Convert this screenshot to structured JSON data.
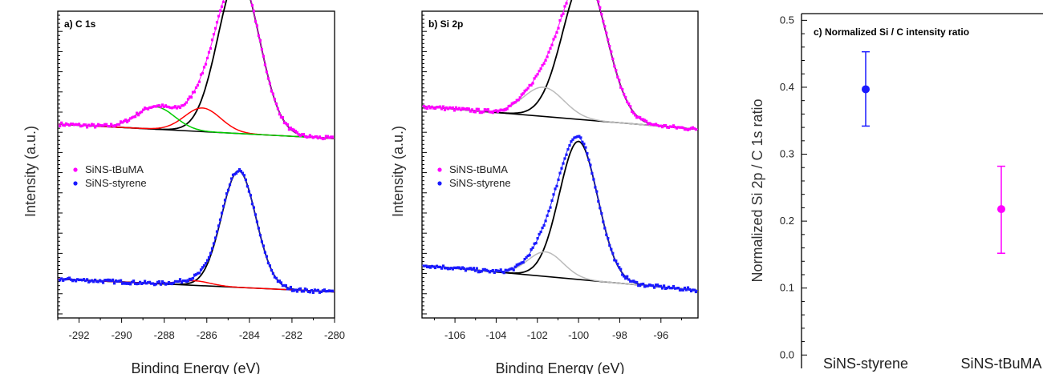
{
  "chart_data": [
    {
      "type": "line",
      "panel_label": "a) C 1s",
      "xlabel": "Binding Energy (eV)",
      "ylabel": "Intensity (a.u.)",
      "xlim": [
        -293,
        -280
      ],
      "x_reversed": false,
      "ylim": [
        0,
        1
      ],
      "x_ticks": [
        -292,
        -290,
        -288,
        -286,
        -284,
        -282,
        -280
      ],
      "x_tick_labels": [
        "-292",
        "-290",
        "-288",
        "-286",
        "-284",
        "-282",
        "-280"
      ],
      "legend": {
        "placement": "center-left",
        "entries": [
          {
            "name": "SiNS-tBuMA",
            "color": "#ff00ff"
          },
          {
            "name": "SiNS-styrene",
            "color": "#1a1aff"
          }
        ]
      },
      "spectra": [
        {
          "name": "SiNS-tBuMA",
          "color": "#ff00ff",
          "offset": 0.585,
          "baseline": [
            0.047,
            0.0
          ],
          "peaks": [
            {
              "center": -284.5,
              "height": 0.515,
              "fwhm": 2.3,
              "color": "#000000"
            },
            {
              "center": -286.2,
              "height": 0.077,
              "fwhm": 2.0,
              "color": "#ff0000"
            },
            {
              "center": -288.4,
              "height": 0.073,
              "fwhm": 2.1,
              "color": "#00cc00"
            }
          ]
        },
        {
          "name": "SiNS-styrene",
          "color": "#1a1aff",
          "offset": 0.085,
          "baseline": [
            0.042,
            0.0
          ],
          "peaks": [
            {
              "center": -284.5,
              "height": 0.38,
              "fwhm": 1.9,
              "color": "#000000"
            },
            {
              "center": -286.6,
              "height": 0.015,
              "fwhm": 1.8,
              "color": "#ff0000"
            }
          ]
        }
      ]
    },
    {
      "type": "line",
      "panel_label": "b) Si 2p",
      "xlabel": "Binding Energy (eV)",
      "ylabel": "Intensity (a.u.)",
      "xlim": [
        -107.6,
        -94.2
      ],
      "x_reversed": false,
      "ylim": [
        0,
        1
      ],
      "x_ticks": [
        -106,
        -104,
        -102,
        -100,
        -98,
        -96
      ],
      "x_tick_labels": [
        "-106",
        "-104",
        "-102",
        "-100",
        "-98",
        "-96"
      ],
      "legend": {
        "placement": "center-left",
        "entries": [
          {
            "name": "SiNS-tBuMA",
            "color": "#ff00ff"
          },
          {
            "name": "SiNS-styrene",
            "color": "#1a1aff"
          }
        ]
      },
      "spectra": [
        {
          "name": "SiNS-tBuMA",
          "color": "#ff00ff",
          "offset": 0.615,
          "baseline": [
            0.075,
            0.0
          ],
          "peaks": [
            {
              "center": -99.7,
              "height": 0.465,
              "fwhm": 2.5,
              "color": "#000000"
            },
            {
              "center": -101.7,
              "height": 0.095,
              "fwhm": 2.3,
              "color": "#bbbbbb"
            }
          ]
        },
        {
          "name": "SiNS-styrene",
          "color": "#1a1aff",
          "offset": 0.09,
          "baseline": [
            0.082,
            0.0
          ],
          "peaks": [
            {
              "center": -100.0,
              "height": 0.45,
              "fwhm": 2.2,
              "color": "#000000"
            },
            {
              "center": -101.6,
              "height": 0.08,
              "fwhm": 2.0,
              "color": "#bbbbbb"
            }
          ]
        }
      ]
    },
    {
      "type": "scatter",
      "panel_label": "c) Normalized Si / C intensity ratio",
      "xlabel": "",
      "ylabel": "Normalized Si 2p / C 1s ratio",
      "categories": [
        "SiNS-styrene",
        "SiNS-tBuMA"
      ],
      "ylim": [
        -0.02,
        0.51
      ],
      "y_ticks": [
        0.0,
        0.1,
        0.2,
        0.3,
        0.4,
        0.5
      ],
      "y_tick_labels": [
        "0.0",
        "0.1",
        "0.2",
        "0.3",
        "0.4",
        "0.5"
      ],
      "points": [
        {
          "category": "SiNS-styrene",
          "value": 0.397,
          "err_low": 0.342,
          "err_high": 0.453,
          "color": "#1a1aff"
        },
        {
          "category": "SiNS-tBuMA",
          "value": 0.218,
          "err_low": 0.152,
          "err_high": 0.282,
          "color": "#ff00ff"
        }
      ]
    }
  ]
}
